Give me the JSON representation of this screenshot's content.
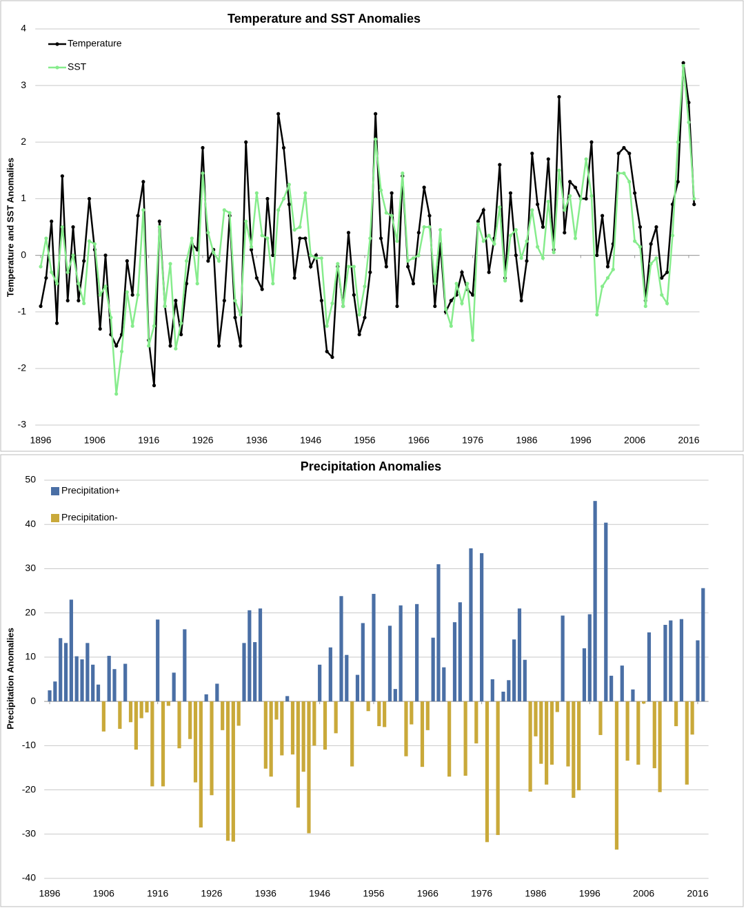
{
  "chart_data": [
    {
      "type": "line",
      "title": "Temperature and SST Anomalies",
      "ylabel": "Temperature and SST Anomalies",
      "x": [
        1896,
        1897,
        1898,
        1899,
        1900,
        1901,
        1902,
        1903,
        1904,
        1905,
        1906,
        1907,
        1908,
        1909,
        1910,
        1911,
        1912,
        1913,
        1914,
        1915,
        1916,
        1917,
        1918,
        1919,
        1920,
        1921,
        1922,
        1923,
        1924,
        1925,
        1926,
        1927,
        1928,
        1929,
        1930,
        1931,
        1932,
        1933,
        1934,
        1935,
        1936,
        1937,
        1938,
        1939,
        1940,
        1941,
        1942,
        1943,
        1944,
        1945,
        1946,
        1947,
        1948,
        1949,
        1950,
        1951,
        1952,
        1953,
        1954,
        1955,
        1956,
        1957,
        1958,
        1959,
        1960,
        1961,
        1962,
        1963,
        1964,
        1965,
        1966,
        1967,
        1968,
        1969,
        1970,
        1971,
        1972,
        1973,
        1974,
        1975,
        1976,
        1977,
        1978,
        1979,
        1980,
        1981,
        1982,
        1983,
        1984,
        1985,
        1986,
        1987,
        1988,
        1989,
        1990,
        1991,
        1992,
        1993,
        1994,
        1995,
        1996,
        1997,
        1998,
        1999,
        2000,
        2001,
        2002,
        2003,
        2004,
        2005,
        2006,
        2007,
        2008,
        2009,
        2010,
        2011,
        2012,
        2013,
        2014,
        2015,
        2016,
        2017
      ],
      "series": [
        {
          "name": "Temperature",
          "color": "#000000",
          "values": [
            -0.9,
            -0.4,
            0.6,
            -1.2,
            1.4,
            -0.8,
            0.5,
            -0.8,
            -0.1,
            1.0,
            0.1,
            -1.3,
            0.0,
            -1.4,
            -1.6,
            -1.4,
            -0.1,
            -0.7,
            0.7,
            1.3,
            -1.5,
            -2.3,
            0.6,
            -0.9,
            -1.6,
            -0.8,
            -1.4,
            -0.5,
            0.2,
            0.1,
            1.9,
            -0.1,
            0.1,
            -1.6,
            -0.8,
            0.7,
            -1.1,
            -1.6,
            2.0,
            0.1,
            -0.4,
            -0.6,
            1.0,
            0.0,
            2.5,
            1.9,
            0.9,
            -0.4,
            0.3,
            0.3,
            -0.2,
            0.0,
            -0.8,
            -1.7,
            -1.8,
            -0.2,
            -0.9,
            0.4,
            -0.7,
            -1.4,
            -1.1,
            -0.3,
            2.5,
            0.3,
            -0.2,
            1.1,
            -0.9,
            1.4,
            -0.2,
            -0.5,
            0.4,
            1.2,
            0.7,
            -0.9,
            0.2,
            -1.0,
            -0.8,
            -0.7,
            -0.3,
            -0.6,
            -0.7,
            0.6,
            0.8,
            -0.3,
            0.3,
            1.6,
            -0.4,
            1.1,
            0.0,
            -0.8,
            -0.1,
            1.8,
            0.9,
            0.5,
            1.7,
            0.1,
            2.8,
            0.4,
            1.3,
            1.2,
            1.0,
            1.0,
            2.0,
            0.0,
            0.7,
            -0.2,
            0.2,
            1.8,
            1.9,
            1.8,
            1.1,
            0.5,
            -0.8,
            0.2,
            0.5,
            -0.4,
            -0.3,
            0.9,
            1.3,
            3.4,
            2.7,
            0.9
          ]
        },
        {
          "name": "SST",
          "color": "#86ec8c",
          "values": [
            -0.2,
            0.3,
            -0.3,
            -0.5,
            0.5,
            -0.3,
            0.0,
            -0.5,
            -0.85,
            0.25,
            0.2,
            -0.7,
            -0.55,
            -1.1,
            -2.45,
            -1.7,
            -0.65,
            -1.25,
            -0.7,
            0.8,
            -1.6,
            -1.25,
            0.5,
            -0.9,
            -0.15,
            -1.65,
            -1.2,
            -0.1,
            0.3,
            -0.5,
            1.45,
            0.4,
            0.05,
            -0.1,
            0.8,
            0.75,
            -0.8,
            -1.05,
            0.6,
            0.15,
            1.1,
            0.35,
            0.3,
            -0.5,
            0.8,
            1.0,
            1.25,
            0.45,
            0.5,
            1.1,
            0.0,
            -0.05,
            -0.05,
            -1.25,
            -0.85,
            -0.15,
            -0.9,
            -0.2,
            -0.2,
            -1.05,
            -0.55,
            0.3,
            2.05,
            1.15,
            0.75,
            0.7,
            0.25,
            1.45,
            -0.1,
            -0.05,
            0.0,
            0.5,
            0.5,
            -0.5,
            0.45,
            -0.95,
            -1.25,
            -0.5,
            -0.85,
            -0.5,
            -1.5,
            0.55,
            0.25,
            0.35,
            0.2,
            0.85,
            -0.45,
            0.35,
            0.45,
            -0.05,
            0.25,
            0.8,
            0.15,
            -0.05,
            0.95,
            0.05,
            1.5,
            0.8,
            1.05,
            0.3,
            1.0,
            1.7,
            1.05,
            -1.05,
            -0.55,
            -0.4,
            -0.25,
            1.45,
            1.45,
            1.3,
            0.25,
            0.15,
            -0.9,
            -0.15,
            -0.05,
            -0.7,
            -0.85,
            0.35,
            2.0,
            3.35,
            2.35,
            1.0
          ]
        }
      ],
      "xlim": [
        1895,
        2018
      ],
      "xticks": [
        1896,
        1906,
        1916,
        1926,
        1936,
        1946,
        1956,
        1966,
        1976,
        1986,
        1996,
        2006,
        2016
      ],
      "ylim": [
        -3,
        4
      ],
      "yticks": [
        4,
        3,
        2,
        1,
        0,
        -1,
        -2,
        -3
      ],
      "grid": true,
      "legend": "upper left"
    },
    {
      "type": "bar",
      "title": "Precipitation Anomalies",
      "ylabel": "Precipitation Anomalies",
      "x": [
        1896,
        1897,
        1898,
        1899,
        1900,
        1901,
        1902,
        1903,
        1904,
        1905,
        1906,
        1907,
        1908,
        1909,
        1910,
        1911,
        1912,
        1913,
        1914,
        1915,
        1916,
        1917,
        1918,
        1919,
        1920,
        1921,
        1922,
        1923,
        1924,
        1925,
        1926,
        1927,
        1928,
        1929,
        1930,
        1931,
        1932,
        1933,
        1934,
        1935,
        1936,
        1937,
        1938,
        1939,
        1940,
        1941,
        1942,
        1943,
        1944,
        1945,
        1946,
        1947,
        1948,
        1949,
        1950,
        1951,
        1952,
        1953,
        1954,
        1955,
        1956,
        1957,
        1958,
        1959,
        1960,
        1961,
        1962,
        1963,
        1964,
        1965,
        1966,
        1967,
        1968,
        1969,
        1970,
        1971,
        1972,
        1973,
        1974,
        1975,
        1976,
        1977,
        1978,
        1979,
        1980,
        1981,
        1982,
        1983,
        1984,
        1985,
        1986,
        1987,
        1988,
        1989,
        1990,
        1991,
        1992,
        1993,
        1994,
        1995,
        1996,
        1997,
        1998,
        1999,
        2000,
        2001,
        2002,
        2003,
        2004,
        2005,
        2006,
        2007,
        2008,
        2009,
        2010,
        2011,
        2012,
        2013,
        2014,
        2015,
        2016,
        2017
      ],
      "series": [
        {
          "name": "Precipitation+",
          "color": "#4a6fa5",
          "values": [
            2.5,
            4.5,
            14.3,
            13.2,
            23,
            10.2,
            9.5,
            13.2,
            8.3,
            3.8,
            null,
            10.3,
            7.3,
            null,
            8.5,
            null,
            null,
            null,
            null,
            null,
            18.5,
            null,
            null,
            6.5,
            null,
            16.3,
            null,
            null,
            null,
            1.6,
            null,
            4.0,
            null,
            null,
            null,
            null,
            13.2,
            20.6,
            13.4,
            21.0,
            null,
            null,
            null,
            null,
            1.2,
            null,
            null,
            null,
            null,
            null,
            8.3,
            null,
            12.2,
            null,
            23.8,
            10.5,
            null,
            6.0,
            17.7,
            null,
            24.3,
            null,
            null,
            17.1,
            2.8,
            21.7,
            null,
            null,
            22.0,
            null,
            null,
            14.4,
            31.0,
            7.7,
            null,
            17.9,
            22.4,
            null,
            34.6,
            null,
            33.5,
            null,
            5.0,
            null,
            2.2,
            4.8,
            14.0,
            21.0,
            9.4,
            null,
            null,
            null,
            null,
            null,
            null,
            19.4,
            null,
            null,
            null,
            12.0,
            19.7,
            45.3,
            null,
            40.4,
            5.8,
            null,
            8.1,
            null,
            2.7,
            null,
            null,
            15.6,
            null,
            null,
            17.3,
            18.3,
            null,
            18.6,
            null,
            null,
            13.8,
            25.6
          ]
        },
        {
          "name": "Precipitation-",
          "color": "#c9a93a",
          "values": [
            null,
            null,
            null,
            null,
            null,
            null,
            null,
            null,
            null,
            null,
            -6.8,
            null,
            null,
            -6.2,
            null,
            -4.7,
            -10.9,
            -3.8,
            -2.5,
            -19.2,
            null,
            -19.2,
            -1.0,
            null,
            -10.6,
            null,
            -8.5,
            -18.3,
            -28.5,
            null,
            -21.2,
            null,
            -6.5,
            -31.5,
            -31.7,
            -5.5,
            null,
            null,
            null,
            null,
            -15.2,
            -17.0,
            -4.1,
            -12.2,
            null,
            -12.0,
            -24.0,
            -15.9,
            -29.8,
            -10.0,
            null,
            -10.9,
            null,
            -7.2,
            null,
            null,
            -14.7,
            null,
            null,
            -2.2,
            null,
            -5.6,
            -5.8,
            null,
            null,
            null,
            -12.4,
            -5.2,
            null,
            -14.8,
            -6.5,
            null,
            null,
            null,
            -17.0,
            null,
            null,
            -16.8,
            null,
            -9.5,
            null,
            -31.8,
            null,
            -30.2,
            null,
            null,
            null,
            null,
            null,
            -20.4,
            -7.9,
            -14.1,
            -18.8,
            -14.3,
            -2.4,
            null,
            -14.7,
            -21.8,
            -20.1,
            null,
            null,
            null,
            -7.6,
            null,
            null,
            -33.5,
            null,
            -13.4,
            null,
            -14.3,
            -0.5,
            null,
            -15.1,
            -20.5,
            null,
            null,
            -5.6,
            null,
            -18.8,
            -7.5,
            null,
            null
          ]
        }
      ],
      "xlim": [
        1895,
        2018
      ],
      "xticks": [
        1896,
        1906,
        1916,
        1926,
        1936,
        1946,
        1956,
        1966,
        1976,
        1986,
        1996,
        2006,
        2016
      ],
      "ylim": [
        -40,
        50
      ],
      "yticks": [
        50,
        40,
        30,
        20,
        10,
        0,
        -10,
        -20,
        -30,
        -40
      ],
      "grid": true,
      "legend": "upper left"
    }
  ]
}
